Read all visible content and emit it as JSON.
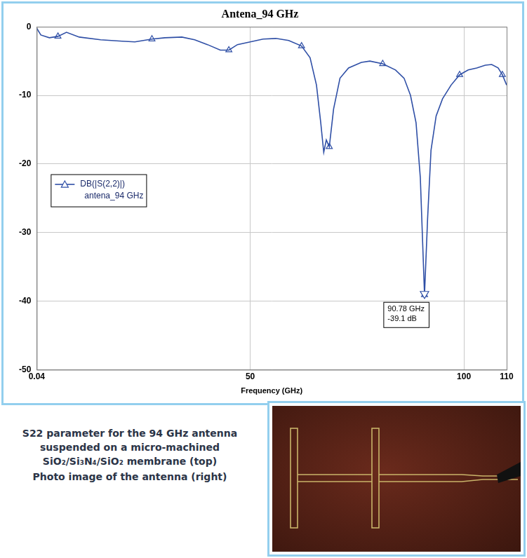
{
  "chart_data": {
    "type": "line",
    "title": "Antena_94 GHz",
    "x_label": "Frequency (GHz)",
    "x": [
      0.04,
      1,
      3,
      5,
      7,
      10,
      15,
      20,
      23,
      27,
      30,
      34,
      37,
      40,
      43,
      45,
      47,
      50,
      53,
      56,
      59,
      62,
      64,
      65.5,
      66.5,
      67.2,
      67.8,
      68.5,
      69.5,
      71,
      73,
      76,
      78,
      81,
      84,
      86,
      87.5,
      88.8,
      89.8,
      90.78,
      91.5,
      92.3,
      93.5,
      95,
      97,
      99,
      101,
      103,
      105,
      106.5,
      108,
      109,
      110
    ],
    "series": [
      {
        "name": "DB(|S(2,2)|)\nantena_94 GHz",
        "color": "#2f4fa6",
        "marker": "triangle",
        "values": [
          -0.2,
          -1.2,
          -1.6,
          -1.4,
          -0.8,
          -1.5,
          -1.9,
          -2.1,
          -2.2,
          -1.8,
          -1.6,
          -1.5,
          -1.9,
          -2.6,
          -3.4,
          -3.4,
          -2.6,
          -2.2,
          -1.8,
          -1.7,
          -2.0,
          -2.8,
          -4.5,
          -8.5,
          -14,
          -18.3,
          -16.5,
          -17.5,
          -12,
          -7.5,
          -6,
          -5.2,
          -5.0,
          -5.4,
          -6.3,
          -7.5,
          -10,
          -14,
          -22,
          -39.1,
          -28,
          -18,
          -13,
          -10.5,
          -8.5,
          -7,
          -6.3,
          -6,
          -5.6,
          -5.5,
          -6,
          -7,
          -8.5
        ]
      }
    ],
    "xlim": [
      0.04,
      110
    ],
    "xticks": [
      0.04,
      50,
      100,
      110
    ],
    "ylim": [
      -50,
      0
    ],
    "yticks": [
      -50,
      -40,
      -30,
      -20,
      -10,
      0
    ],
    "grid": true,
    "legend": "left",
    "annotations": [
      {
        "x": 90.78,
        "y": -39.1,
        "text": [
          "90.78 GHz",
          "-39.1 dB"
        ]
      }
    ]
  },
  "caption": [
    "S22 parameter for the 94 GHz antenna suspended on a micro-machined SiO₂/Si₃N₄/SiO₂ membrane (top)",
    "Photo image of the antenna (right)"
  ]
}
